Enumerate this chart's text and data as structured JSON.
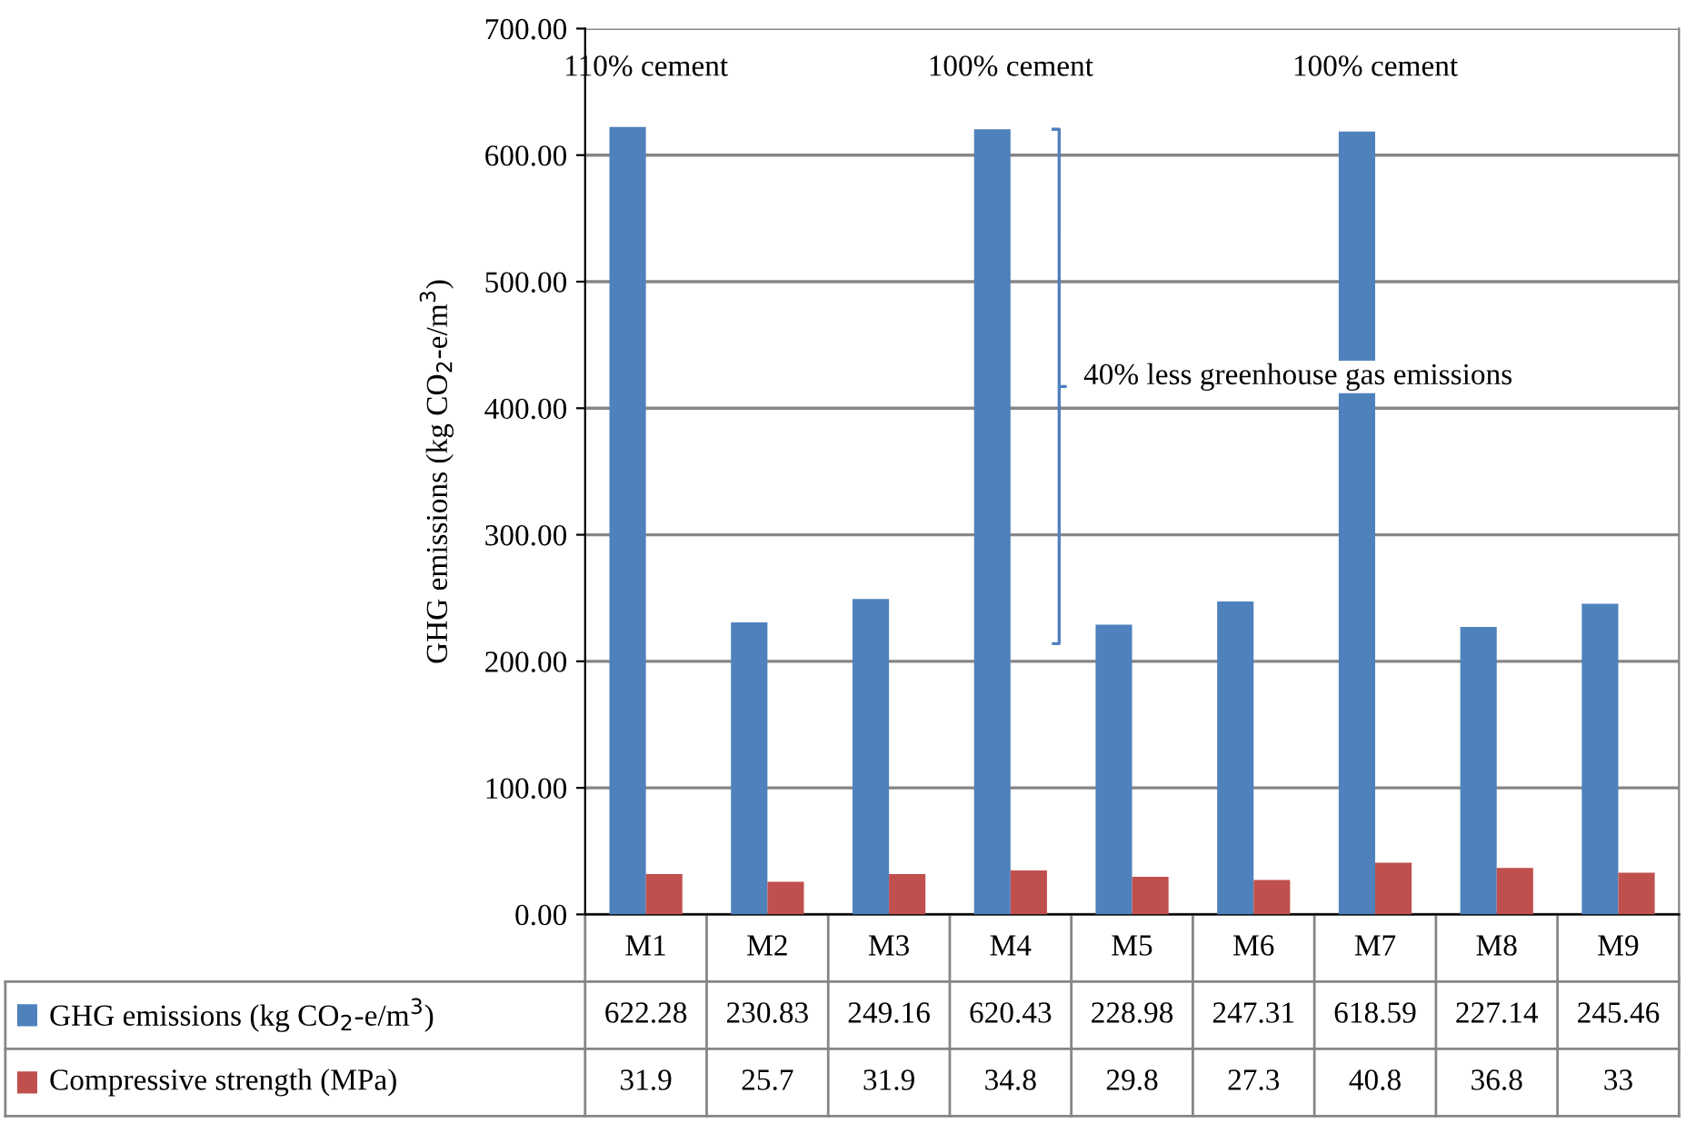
{
  "chart_data": {
    "type": "bar",
    "ylabel": "GHG emissions (kg CO$_{2}$-e/m$^{3}$)",
    "categories": [
      "M1",
      "M2",
      "M3",
      "M4",
      "M5",
      "M6",
      "M7",
      "M8",
      "M9"
    ],
    "series": [
      {
        "name": "GHG emissions (kg CO$_{2}$-e/m$^{3}$)",
        "color": "#4f81bd",
        "values": [
          622.28,
          230.83,
          249.16,
          620.43,
          228.98,
          247.31,
          618.59,
          227.14,
          245.46
        ]
      },
      {
        "name": "Compressive strength (MPa)",
        "color": "#c0504d",
        "values": [
          31.9,
          25.7,
          31.9,
          34.8,
          29.8,
          27.3,
          40.8,
          36.8,
          33
        ]
      }
    ],
    "ylim": [
      0,
      700
    ],
    "yticks": [
      {
        "value": 0,
        "label": "0.00"
      },
      {
        "value": 100,
        "label": "100.00"
      },
      {
        "value": 200,
        "label": "200.00"
      },
      {
        "value": 300,
        "label": "300.00"
      },
      {
        "value": 400,
        "label": "400.00"
      },
      {
        "value": 500,
        "label": "500.00"
      },
      {
        "value": 600,
        "label": "600.00"
      },
      {
        "value": 700,
        "label": "700.00"
      }
    ],
    "grid": "y",
    "legend": "bottom",
    "data_labels": true,
    "annotations": [
      "110% cement",
      "100% cement",
      "100% cement",
      "40% less greenhouse gas emissions"
    ]
  }
}
